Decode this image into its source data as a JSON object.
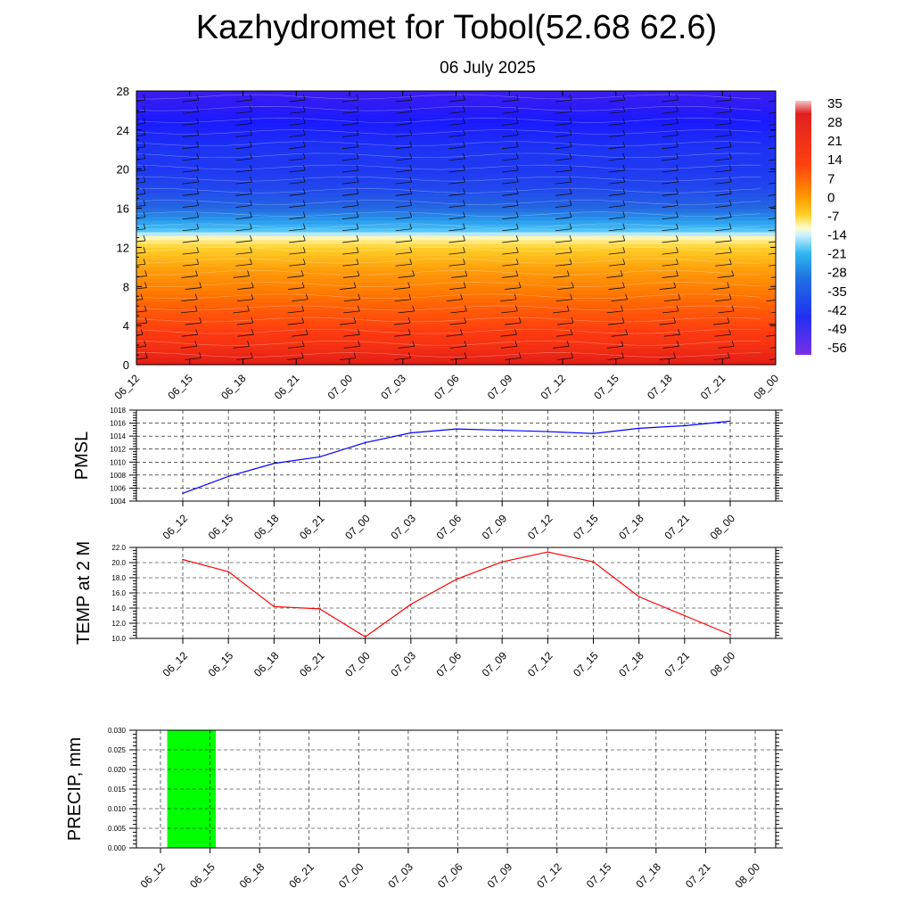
{
  "title": "Kazhydromet for Tobol(52.68 62.6)",
  "subtitle": "06 July 2025",
  "colors": {
    "pmsl_line": "#0000ff",
    "temp_line": "#ff0000",
    "precip_bar": "#00ff00"
  },
  "chart_data": [
    {
      "type": "heatmap",
      "title": "",
      "x_ticks": [
        "06_12",
        "06_15",
        "06_18",
        "06_21",
        "07_00",
        "07_03",
        "07_06",
        "07_09",
        "07_12",
        "07_15",
        "07_18",
        "07_21",
        "08_00"
      ],
      "y_ticks": [
        0,
        4,
        8,
        12,
        16,
        20,
        24,
        28
      ],
      "ylim": [
        0,
        28
      ],
      "colorbar_labels": [
        35,
        28,
        21,
        14,
        7,
        0,
        -7,
        -14,
        -21,
        -28,
        -35,
        -42,
        -49,
        -56
      ],
      "layer_values": {
        "heights": [
          0,
          2,
          4,
          6,
          8,
          10,
          12,
          13,
          14,
          16,
          18,
          20,
          22,
          24,
          26,
          28
        ],
        "values": [
          24,
          18,
          14,
          11,
          7,
          3,
          -5,
          -10,
          -25,
          -40,
          -48,
          -52,
          -53,
          -58,
          -62,
          -65
        ]
      },
      "wind_barbs": true
    },
    {
      "type": "line",
      "ylabel": "PMSL",
      "x": [
        "06_12",
        "06_15",
        "06_18",
        "06_21",
        "07_00",
        "07_03",
        "07_06",
        "07_09",
        "07_12",
        "07_15",
        "07_18",
        "07_21",
        "08_00"
      ],
      "series": [
        {
          "values": [
            1005.2,
            1007.8,
            1009.8,
            1010.8,
            1013.0,
            1014.5,
            1015.1,
            1014.9,
            1014.7,
            1014.4,
            1015.2,
            1015.6,
            1016.3
          ]
        }
      ],
      "ylim": [
        1004,
        1018
      ],
      "y_ticks": [
        1004,
        1006,
        1008,
        1010,
        1012,
        1014,
        1016,
        1018
      ],
      "grid": true
    },
    {
      "type": "line",
      "ylabel": "TEMP at 2 M",
      "x": [
        "06_12",
        "06_15",
        "06_18",
        "06_21",
        "07_00",
        "07_03",
        "07_06",
        "07_09",
        "07_12",
        "07_15",
        "07_18",
        "07_21",
        "08_00"
      ],
      "series": [
        {
          "values": [
            20.4,
            18.8,
            14.2,
            13.9,
            10.2,
            14.5,
            17.8,
            20.1,
            21.4,
            20.1,
            15.5,
            13.0,
            10.5
          ]
        }
      ],
      "ylim": [
        10.0,
        22.0
      ],
      "y_ticks": [
        "10.0",
        "12.0",
        "14.0",
        "16.0",
        "18.0",
        "20.0",
        "22.0"
      ],
      "grid": true
    },
    {
      "type": "bar",
      "ylabel": "PRECIP, mm",
      "x": [
        "06_12",
        "06_15",
        "06_18",
        "06_21",
        "07_00",
        "07_03",
        "07_06",
        "07_09",
        "07_12",
        "07_15",
        "07_18",
        "07_21",
        "08_00"
      ],
      "values": [
        0,
        0.03,
        0,
        0,
        0,
        0,
        0,
        0,
        0,
        0,
        0,
        0,
        0
      ],
      "ylim": [
        0.0,
        0.03
      ],
      "y_ticks": [
        "0.000",
        "0.005",
        "0.010",
        "0.015",
        "0.020",
        "0.025",
        "0.030"
      ],
      "grid": true
    }
  ]
}
